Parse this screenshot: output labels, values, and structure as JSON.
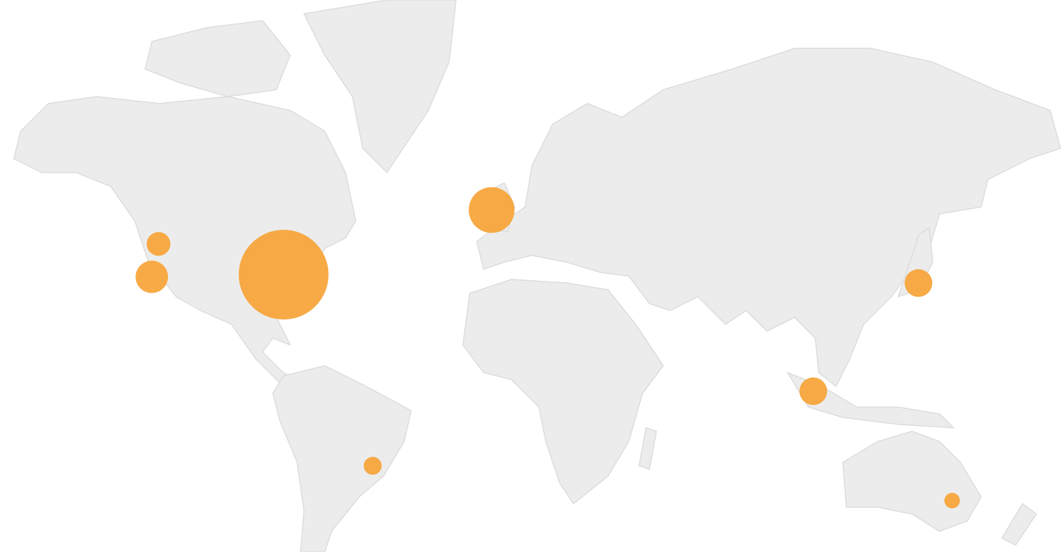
{
  "chart_data": {
    "type": "bubble-map",
    "lon": [
      -77,
      -6,
      -122,
      -119.7,
      139.7,
      103.8,
      -46.6,
      151.2
    ],
    "lat": [
      38,
      53.3,
      37.4,
      45.8,
      35.7,
      1.3,
      -23.5,
      -33.9
    ],
    "values": [
      100,
      26,
      13,
      7,
      9.5,
      9.5,
      4,
      3
    ],
    "color": "#f7a53b"
  }
}
